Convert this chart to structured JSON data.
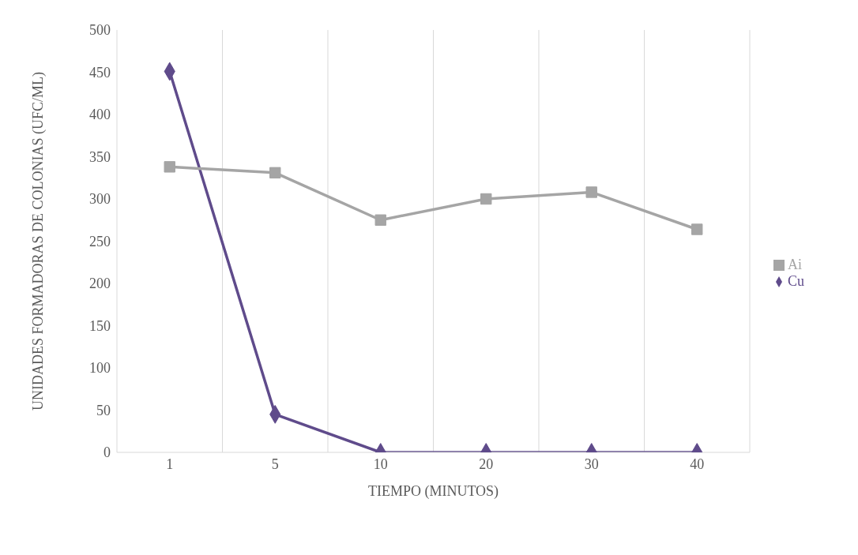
{
  "chart_data": {
    "type": "line",
    "xlabel": "TIEMPO (MINUTOS)",
    "ylabel": "UNIDADES FORMADORAS DE COLONIAS (UFC/ML)",
    "categories": [
      "1",
      "5",
      "10",
      "20",
      "30",
      "40"
    ],
    "series": [
      {
        "name": "Cu",
        "color": "#5f4b8b",
        "marker": "diamond",
        "values": [
          451,
          45,
          0,
          0,
          0,
          0
        ]
      },
      {
        "name": "Ai",
        "color": "#a5a5a5",
        "marker": "square",
        "values": [
          338,
          331,
          275,
          300,
          308,
          264
        ]
      }
    ],
    "ylim": [
      0,
      500
    ],
    "yticks": [
      0,
      50,
      100,
      150,
      200,
      250,
      300,
      350,
      400,
      450,
      500
    ],
    "grid": "x",
    "legend": "right"
  }
}
